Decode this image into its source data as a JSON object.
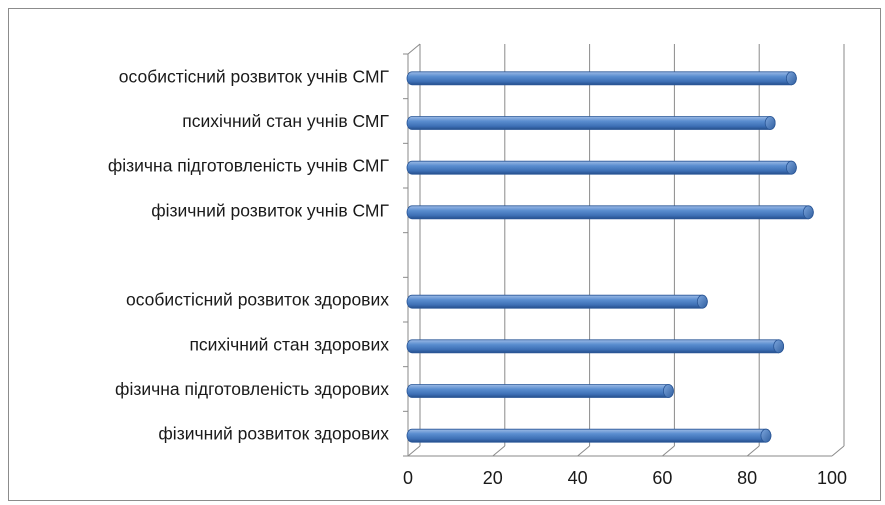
{
  "chart_data": {
    "type": "bar",
    "orientation": "horizontal",
    "style": "3d-cylinder",
    "categories": [
      "особистісний розвиток учнів СМГ",
      "психічний стан учнів СМГ",
      "фізична підготовленість учнів СМГ",
      "фізичний розвиток учнів СМГ",
      "",
      "особистісний розвиток здорових",
      "психічний стан здорових",
      "фізична підготовленість здорових",
      "фізичний розвиток здорових"
    ],
    "values": [
      89,
      84,
      89,
      93,
      null,
      68,
      86,
      60,
      83
    ],
    "xlim": [
      0,
      100
    ],
    "xticks": [
      "0",
      "20",
      "40",
      "60",
      "80",
      "100"
    ],
    "grid": true,
    "bar_color": "#4f81bd"
  }
}
